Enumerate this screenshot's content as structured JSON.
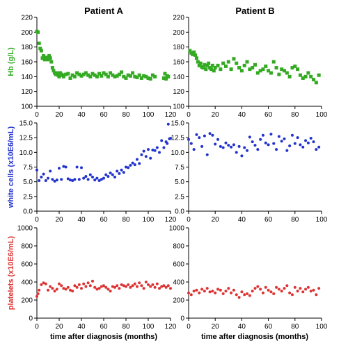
{
  "chart_data": [
    {
      "type": "scatter",
      "title": "Patient A",
      "ylabel": "Hb (g/L)",
      "color": "#33aa22",
      "marker": "square",
      "xlim": [
        0,
        120
      ],
      "ylim": [
        100,
        220
      ],
      "xticks": [
        "0",
        "20",
        "40",
        "60",
        "80",
        "100",
        "120"
      ],
      "yticks": [
        "100",
        "120",
        "140",
        "160",
        "180",
        "200",
        "220"
      ],
      "x": [
        0,
        1,
        2,
        3,
        4,
        5,
        6,
        7,
        8,
        9,
        10,
        11,
        12,
        13,
        14,
        15,
        16,
        17,
        18,
        19,
        20,
        21,
        22,
        23,
        24,
        26,
        28,
        30,
        32,
        34,
        36,
        38,
        40,
        42,
        44,
        46,
        48,
        50,
        52,
        54,
        56,
        58,
        60,
        62,
        64,
        66,
        68,
        70,
        72,
        74,
        76,
        78,
        80,
        82,
        84,
        86,
        88,
        90,
        92,
        94,
        96,
        98,
        100,
        102,
        104,
        106,
        114,
        115,
        116,
        117,
        118
      ],
      "y": [
        201,
        200,
        185,
        178,
        175,
        165,
        168,
        163,
        166,
        165,
        163,
        168,
        165,
        160,
        152,
        148,
        145,
        143,
        145,
        142,
        140,
        145,
        143,
        142,
        140,
        143,
        144,
        138,
        142,
        140,
        145,
        143,
        141,
        143,
        145,
        142,
        140,
        144,
        142,
        140,
        144,
        141,
        145,
        143,
        140,
        145,
        142,
        140,
        141,
        143,
        146,
        140,
        138,
        142,
        141,
        145,
        140,
        139,
        142,
        138,
        141,
        140,
        138,
        137,
        142,
        140,
        138,
        144,
        137,
        141,
        140
      ]
    },
    {
      "type": "scatter",
      "title": "Patient B",
      "ylabel": "",
      "color": "#33aa22",
      "marker": "square",
      "xlim": [
        0,
        100
      ],
      "ylim": [
        100,
        220
      ],
      "xticks": [
        "0",
        "20",
        "40",
        "60",
        "80",
        "100"
      ],
      "yticks": [
        "100",
        "120",
        "140",
        "160",
        "180",
        "200",
        "220"
      ],
      "x": [
        1,
        2,
        3,
        4,
        5,
        6,
        7,
        8,
        9,
        10,
        11,
        12,
        13,
        14,
        15,
        16,
        17,
        18,
        19,
        20,
        22,
        24,
        26,
        28,
        30,
        32,
        34,
        36,
        38,
        40,
        42,
        44,
        46,
        48,
        50,
        52,
        54,
        56,
        58,
        60,
        62,
        64,
        66,
        68,
        70,
        72,
        74,
        76,
        78,
        80,
        82,
        84,
        86,
        88,
        90,
        92,
        94,
        96,
        98
      ],
      "y": [
        175,
        172,
        170,
        173,
        169,
        165,
        160,
        155,
        158,
        153,
        152,
        156,
        150,
        155,
        158,
        152,
        150,
        155,
        148,
        152,
        155,
        150,
        158,
        154,
        160,
        150,
        164,
        158,
        152,
        148,
        155,
        160,
        150,
        152,
        156,
        145,
        148,
        150,
        154,
        148,
        145,
        160,
        152,
        143,
        150,
        148,
        145,
        140,
        152,
        154,
        150,
        142,
        138,
        140,
        145,
        140,
        136,
        132,
        142
      ]
    },
    {
      "type": "scatter",
      "title": "",
      "ylabel": "white cells (x10E6/mL)",
      "color": "#2233cc",
      "marker": "circle",
      "xlim": [
        0,
        120
      ],
      "ylim": [
        0,
        15
      ],
      "xticks": [
        "0",
        "20",
        "40",
        "60",
        "80",
        "100",
        "120"
      ],
      "yticks": [
        "0.0",
        "2.5",
        "5.0",
        "7.5",
        "10.0",
        "12.5",
        "15.0"
      ],
      "x": [
        0,
        2,
        4,
        6,
        8,
        10,
        12,
        14,
        16,
        18,
        20,
        22,
        24,
        26,
        28,
        30,
        32,
        34,
        36,
        38,
        40,
        42,
        44,
        46,
        48,
        50,
        52,
        54,
        56,
        58,
        60,
        62,
        64,
        66,
        68,
        70,
        72,
        74,
        76,
        78,
        80,
        82,
        84,
        86,
        88,
        90,
        92,
        94,
        96,
        98,
        100,
        102,
        104,
        106,
        108,
        110,
        112,
        114,
        116,
        117,
        118,
        119,
        120
      ],
      "y": [
        7,
        5.2,
        5.8,
        6.3,
        5.2,
        5.6,
        6.8,
        5.4,
        5.1,
        5.3,
        7.3,
        5.4,
        7.6,
        7.5,
        5.5,
        5.3,
        5.2,
        5.4,
        7.5,
        5.4,
        7.4,
        5.6,
        5.9,
        5.4,
        6.2,
        5.8,
        5.3,
        5.6,
        5.2,
        5.4,
        5.6,
        6.2,
        5.9,
        6.5,
        6.2,
        5.8,
        6.8,
        6.4,
        7.0,
        6.6,
        7.5,
        7.4,
        7.8,
        8.2,
        7.9,
        8.8,
        8.1,
        9.6,
        10.2,
        9.3,
        10.5,
        9.0,
        10.4,
        10.3,
        10.8,
        10.0,
        12.0,
        10.8,
        11.8,
        11.5,
        14.8,
        12.3,
        12.4
      ]
    },
    {
      "type": "scatter",
      "title": "",
      "ylabel": "",
      "color": "#2233cc",
      "marker": "circle",
      "xlim": [
        0,
        100
      ],
      "ylim": [
        0,
        15
      ],
      "xticks": [
        "0",
        "20",
        "40",
        "60",
        "80",
        "100"
      ],
      "yticks": [
        "0.0",
        "2.5",
        "5.0",
        "7.5",
        "10.0",
        "12.5",
        "15.0"
      ],
      "x": [
        0,
        2,
        4,
        6,
        8,
        10,
        12,
        14,
        16,
        18,
        20,
        22,
        24,
        26,
        28,
        30,
        32,
        34,
        36,
        38,
        40,
        42,
        44,
        46,
        48,
        50,
        52,
        54,
        56,
        58,
        60,
        62,
        64,
        66,
        68,
        70,
        72,
        74,
        76,
        78,
        80,
        82,
        84,
        86,
        88,
        90,
        92,
        94,
        96,
        98
      ],
      "y": [
        12.2,
        11.5,
        10.5,
        13.0,
        12.5,
        11.0,
        12.8,
        9.6,
        13.2,
        12.9,
        11.4,
        12.2,
        11.0,
        10.8,
        11.6,
        11.2,
        10.9,
        11.3,
        10.0,
        11.0,
        9.4,
        10.8,
        10.3,
        12.6,
        11.8,
        11.2,
        10.5,
        12.2,
        12.9,
        11.6,
        11.3,
        13.1,
        11.5,
        10.5,
        12.7,
        11.9,
        12.3,
        10.3,
        11.1,
        12.9,
        11.5,
        12.5,
        11.3,
        10.9,
        12.0,
        11.6,
        12.4,
        11.8,
        10.5,
        10.9
      ]
    },
    {
      "type": "scatter",
      "title": "",
      "ylabel": "platelets (x10E6/mL)",
      "color": "#dd3333",
      "marker": "circle",
      "xlim": [
        0,
        120
      ],
      "ylim": [
        0,
        1000
      ],
      "xticks": [
        "0",
        "20",
        "40",
        "60",
        "80",
        "100",
        "120"
      ],
      "yticks": [
        "0",
        "200",
        "400",
        "600",
        "800",
        "1000"
      ],
      "x": [
        0,
        1,
        2,
        4,
        6,
        8,
        10,
        12,
        14,
        16,
        18,
        20,
        22,
        24,
        26,
        28,
        30,
        32,
        34,
        36,
        38,
        40,
        42,
        44,
        46,
        48,
        50,
        52,
        54,
        56,
        58,
        60,
        62,
        64,
        66,
        68,
        70,
        72,
        74,
        76,
        78,
        80,
        82,
        84,
        86,
        88,
        90,
        92,
        94,
        96,
        98,
        100,
        102,
        104,
        106,
        108,
        110,
        112,
        114,
        116,
        118,
        120
      ],
      "y": [
        240,
        270,
        310,
        370,
        390,
        380,
        310,
        350,
        330,
        300,
        320,
        380,
        360,
        330,
        320,
        340,
        310,
        300,
        360,
        340,
        370,
        330,
        380,
        350,
        390,
        360,
        410,
        340,
        320,
        330,
        350,
        360,
        340,
        320,
        300,
        350,
        340,
        360,
        330,
        370,
        360,
        350,
        370,
        340,
        360,
        380,
        350,
        390,
        360,
        330,
        400,
        370,
        350,
        370,
        340,
        380,
        330,
        350,
        360,
        340,
        360,
        330
      ]
    },
    {
      "type": "scatter",
      "title": "",
      "ylabel": "",
      "color": "#dd3333",
      "marker": "circle",
      "xlim": [
        0,
        100
      ],
      "ylim": [
        0,
        1000
      ],
      "xticks": [
        "0",
        "20",
        "40",
        "60",
        "80",
        "100"
      ],
      "yticks": [
        "0",
        "200",
        "400",
        "600",
        "800",
        "1000"
      ],
      "x": [
        0,
        2,
        4,
        6,
        8,
        10,
        12,
        14,
        16,
        18,
        20,
        22,
        24,
        26,
        28,
        30,
        32,
        34,
        36,
        38,
        40,
        42,
        44,
        46,
        48,
        50,
        52,
        54,
        56,
        58,
        60,
        62,
        64,
        66,
        68,
        70,
        72,
        74,
        76,
        78,
        80,
        82,
        84,
        86,
        88,
        90,
        92,
        94,
        96,
        98
      ],
      "y": [
        280,
        260,
        300,
        310,
        280,
        320,
        300,
        330,
        290,
        300,
        280,
        320,
        310,
        270,
        300,
        330,
        280,
        310,
        260,
        230,
        290,
        260,
        270,
        250,
        300,
        330,
        350,
        320,
        280,
        340,
        310,
        290,
        270,
        340,
        320,
        300,
        330,
        360,
        280,
        260,
        340,
        300,
        330,
        290,
        320,
        340,
        300,
        310,
        260,
        330
      ]
    }
  ],
  "shared": {
    "xlabel": "time after diagnosis (months)"
  }
}
